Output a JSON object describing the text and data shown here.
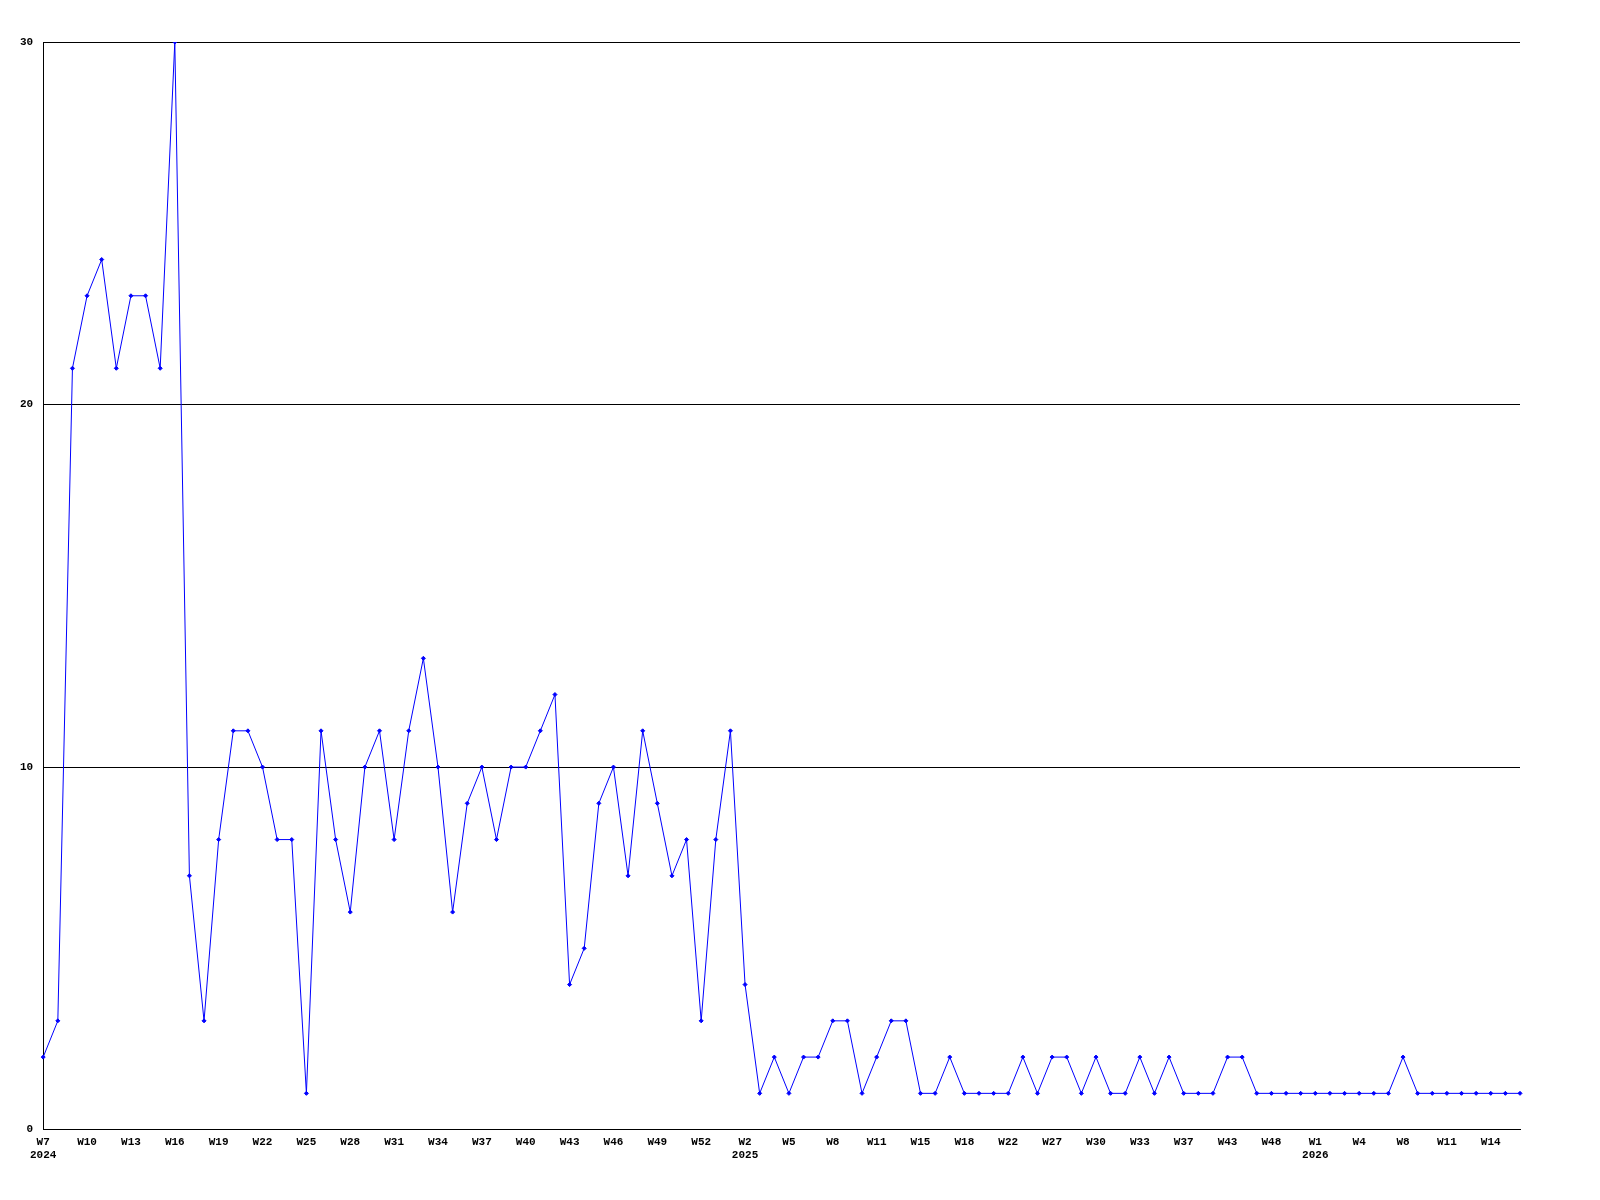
{
  "chart_data": {
    "type": "line",
    "categories": [
      "W7\n2024",
      null,
      null,
      "W10",
      null,
      null,
      "W13",
      null,
      null,
      "W16",
      null,
      null,
      "W19",
      null,
      null,
      "W22",
      null,
      null,
      "W25",
      null,
      null,
      "W28",
      null,
      null,
      "W31",
      null,
      null,
      "W34",
      null,
      null,
      "W37",
      null,
      null,
      "W40",
      null,
      null,
      "W43",
      null,
      null,
      "W46",
      null,
      null,
      "W49",
      null,
      null,
      "W52",
      null,
      null,
      "W2\n2025",
      null,
      null,
      "W5",
      null,
      null,
      "W8",
      null,
      null,
      "W11",
      null,
      null,
      "W15",
      null,
      null,
      "W18",
      null,
      null,
      "W22",
      null,
      null,
      "W27",
      null,
      null,
      "W30",
      null,
      null,
      "W33",
      null,
      null,
      "W37",
      null,
      null,
      "W43",
      null,
      null,
      "W48",
      null,
      null,
      "W1\n2026",
      null,
      null,
      "W4",
      null,
      null,
      "W8",
      null,
      null,
      "W11",
      null,
      null,
      "W14",
      null,
      null
    ],
    "values": [
      2,
      3,
      21,
      23,
      24,
      21,
      23,
      23,
      21,
      30,
      7,
      3,
      8,
      11,
      11,
      10,
      8,
      8,
      1,
      11,
      8,
      6,
      10,
      11,
      8,
      11,
      13,
      10,
      6,
      9,
      10,
      8,
      10,
      10,
      11,
      12,
      4,
      5,
      9,
      10,
      7,
      11,
      9,
      7,
      8,
      3,
      8,
      11,
      4,
      1,
      2,
      1,
      2,
      2,
      3,
      3,
      1,
      2,
      3,
      3,
      1,
      1,
      2,
      1,
      1,
      1,
      1,
      2,
      1,
      2,
      2,
      1,
      2,
      1,
      1,
      2,
      1,
      2,
      1,
      1,
      1,
      2,
      2,
      1,
      1,
      1,
      1,
      1,
      1,
      1,
      1,
      1,
      1,
      2,
      1,
      1,
      1,
      1,
      1,
      1,
      1,
      1
    ],
    "color": "#0000ff",
    "ylim": [
      0,
      30
    ],
    "yticks": [
      0,
      10,
      20,
      30
    ],
    "grid": "y",
    "marker": "diamond"
  }
}
